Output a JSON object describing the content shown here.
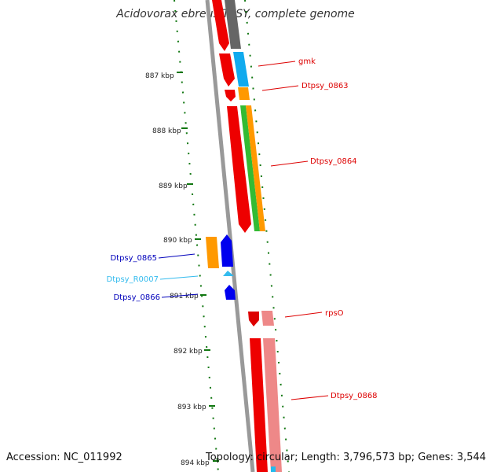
{
  "header": {
    "title": "Acidovorax ebreus TPSY, complete genome"
  },
  "footer": {
    "accession": "Accession: NC_011992",
    "summary": "Topology: circular; Length: 3,796,573 bp; Genes: 3,544"
  },
  "scale_labels": [
    "887 kbp",
    "888 kbp",
    "889 kbp",
    "890 kbp",
    "891 kbp",
    "892 kbp",
    "893 kbp",
    "894 kbp"
  ],
  "gene_labels": [
    {
      "name": "gmk",
      "color": "#dd0000"
    },
    {
      "name": "Dtpsy_0863",
      "color": "#dd0000"
    },
    {
      "name": "Dtpsy_0864",
      "color": "#dd0000"
    },
    {
      "name": "Dtpsy_0865",
      "color": "#0000bb"
    },
    {
      "name": "Dtpsy_R0007",
      "color": "#33bbee"
    },
    {
      "name": "Dtpsy_0866",
      "color": "#0000bb"
    },
    {
      "name": "rpsO",
      "color": "#dd0000"
    },
    {
      "name": "Dtpsy_0868",
      "color": "#dd0000"
    }
  ],
  "colors": {
    "forward_strand": "#ee0000",
    "reverse_strand": "#0000ee",
    "backbone": "#888888",
    "tick": "#117711"
  }
}
